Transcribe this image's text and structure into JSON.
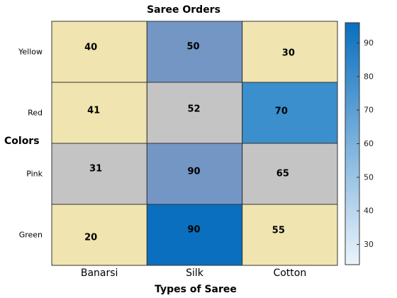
{
  "chart_data": {
    "type": "heatmap",
    "title": "Saree Orders",
    "xlabel": "Types of Saree",
    "ylabel": "Colors",
    "x_categories": [
      "Banarsi",
      "Silk",
      "Cotton"
    ],
    "y_categories": [
      "Yellow",
      "Red",
      "Pink",
      "Green"
    ],
    "values": [
      [
        40,
        50,
        30
      ],
      [
        41,
        52,
        70
      ],
      [
        31,
        90,
        65
      ],
      [
        20,
        90,
        55
      ]
    ],
    "cell_colors": [
      [
        "#f0e4b0",
        "#7396c4",
        "#f0e4b0"
      ],
      [
        "#f0e4b0",
        "#c4c4c4",
        "#3a8fcc"
      ],
      [
        "#c4c4c4",
        "#7396c4",
        "#c4c4c4"
      ],
      [
        "#f0e4b0",
        "#0a6fbe",
        "#f0e4b0"
      ]
    ],
    "colorbar": {
      "ticks": [
        30,
        40,
        50,
        60,
        70,
        80,
        90
      ],
      "range": [
        24,
        96
      ],
      "color_low": "#ecf4fb",
      "color_high": "#0a6fbe"
    }
  }
}
